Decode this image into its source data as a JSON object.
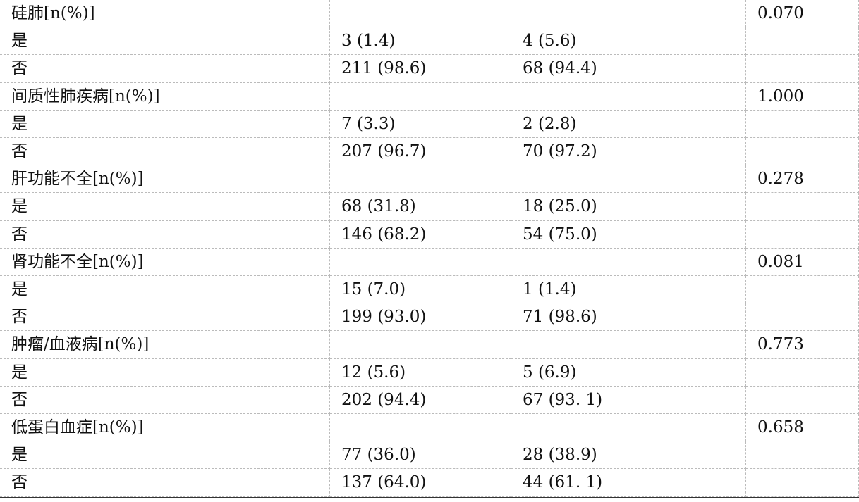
{
  "table": {
    "rows": [
      [
        "硅肺[n(%)]",
        null,
        null,
        "0.070"
      ],
      [
        "是",
        "3 (1.4)",
        "4 (5.6)",
        null
      ],
      [
        "否",
        "211 (98.6)",
        "68 (94.4)",
        null
      ],
      [
        "间质性肺疾病[n(%)]",
        null,
        null,
        "1.000"
      ],
      [
        "是",
        "7 (3.3)",
        "2 (2.8)",
        null
      ],
      [
        "否",
        "207 (96.7)",
        "70 (97.2)",
        null
      ],
      [
        "肝功能不全[n(%)]",
        null,
        null,
        "0.278"
      ],
      [
        "是",
        "68 (31.8)",
        "18 (25.0)",
        null
      ],
      [
        "否",
        "146 (68.2)",
        "54 (75.0)",
        null
      ],
      [
        "肾功能不全[n(%)]",
        null,
        null,
        "0.081"
      ],
      [
        "是",
        "15 (7.0)",
        "1 (1.4)",
        null
      ],
      [
        "否",
        "199 (93.0)",
        "71 (98.6)",
        null
      ],
      [
        "肿瘤/血液病[n(%)]",
        null,
        null,
        "0.773"
      ],
      [
        "是",
        "12 (5.6)",
        "5 (6.9)",
        null
      ],
      [
        "否",
        "202 (94.4)",
        "67 (93. 1)",
        null
      ],
      [
        "低蛋白血症[n(%)]",
        null,
        null,
        "0.658"
      ],
      [
        "是",
        "77 (36.0)",
        "28 (38.9)",
        null
      ],
      [
        "否",
        "137 (64.0)",
        "44 (61. 1)",
        null
      ]
    ]
  }
}
